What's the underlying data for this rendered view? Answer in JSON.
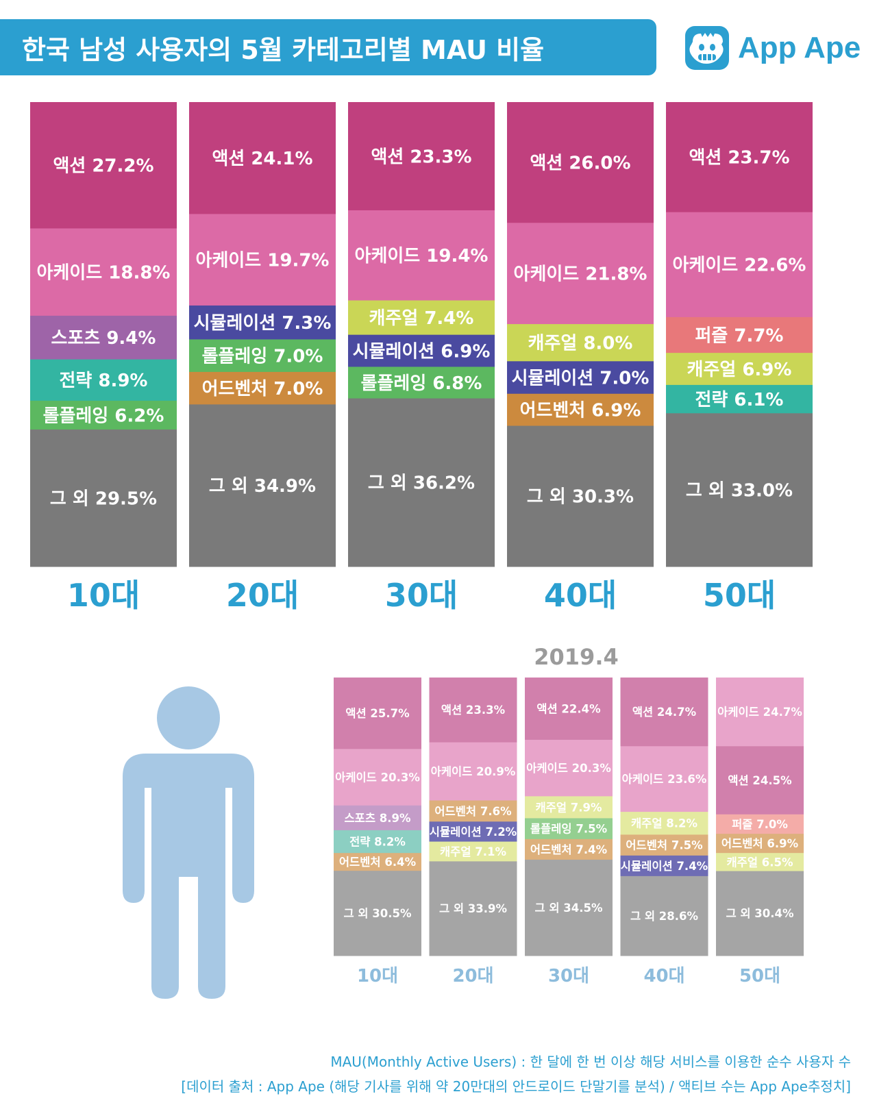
{
  "header": {
    "title": "한국 남성 사용자의 5월 카테고리별 MAU 비율",
    "logo_text": "App Ape",
    "brand_color": "#2b9fd0"
  },
  "colors": {
    "액션": "#c0407e",
    "아케이드": "#dc6aa6",
    "스포츠": "#9e64a8",
    "전략": "#33b5a2",
    "롤플레잉": "#5cb860",
    "시뮬레이션": "#4a4aa0",
    "어드벤처": "#cc8a3e",
    "캐주얼": "#cad656",
    "퍼즐": "#e8787a",
    "그 외": "#7a7a7a",
    "prev": {
      "액션": "#d180ac",
      "아케이드": "#e8a4ca",
      "스포츠": "#c49cc8",
      "전략": "#8ccfc2",
      "롤플레잉": "#94cf90",
      "시뮬레이션": "#6e6cb4",
      "어드벤처": "#ddb07c",
      "캐주얼": "#e4eaa0",
      "퍼즐": "#f4aca8",
      "그 외": "#a5a5a5"
    }
  },
  "chart_data": [
    {
      "type": "bar",
      "stacked": true,
      "period": "2019.5",
      "categories": [
        "10대",
        "20대",
        "30대",
        "40대",
        "50대"
      ],
      "stacks": [
        [
          {
            "label": "액션",
            "value": 27.2,
            "display": "액션 27.2%"
          },
          {
            "label": "아케이드",
            "value": 18.8,
            "display": "아케이드 18.8%"
          },
          {
            "label": "스포츠",
            "value": 9.4,
            "display": "스포츠 9.4%"
          },
          {
            "label": "전략",
            "value": 8.9,
            "display": "전략 8.9%"
          },
          {
            "label": "롤플레잉",
            "value": 6.2,
            "display": "롤플레잉 6.2%"
          },
          {
            "label": "그 외",
            "value": 29.5,
            "display": "그 외 29.5%"
          }
        ],
        [
          {
            "label": "액션",
            "value": 24.1,
            "display": "액션 24.1%"
          },
          {
            "label": "아케이드",
            "value": 19.7,
            "display": "아케이드 19.7%"
          },
          {
            "label": "시뮬레이션",
            "value": 7.3,
            "display": "시뮬레이션 7.3%"
          },
          {
            "label": "롤플레잉",
            "value": 7.0,
            "display": "롤플레잉 7.0%"
          },
          {
            "label": "어드벤처",
            "value": 7.0,
            "display": "어드벤처 7.0%"
          },
          {
            "label": "그 외",
            "value": 34.9,
            "display": "그 외 34.9%"
          }
        ],
        [
          {
            "label": "액션",
            "value": 23.3,
            "display": "액션 23.3%"
          },
          {
            "label": "아케이드",
            "value": 19.4,
            "display": "아케이드 19.4%"
          },
          {
            "label": "캐주얼",
            "value": 7.4,
            "display": "캐주얼 7.4%"
          },
          {
            "label": "시뮬레이션",
            "value": 6.9,
            "display": "시뮬레이션 6.9%"
          },
          {
            "label": "롤플레잉",
            "value": 6.8,
            "display": "롤플레잉 6.8%"
          },
          {
            "label": "그 외",
            "value": 36.2,
            "display": "그 외 36.2%"
          }
        ],
        [
          {
            "label": "액션",
            "value": 26.0,
            "display": "액션 26.0%"
          },
          {
            "label": "아케이드",
            "value": 21.8,
            "display": "아케이드 21.8%"
          },
          {
            "label": "캐주얼",
            "value": 8.0,
            "display": "캐주얼 8.0%"
          },
          {
            "label": "시뮬레이션",
            "value": 7.0,
            "display": "시뮬레이션 7.0%"
          },
          {
            "label": "어드벤처",
            "value": 6.9,
            "display": "어드벤처 6.9%"
          },
          {
            "label": "그 외",
            "value": 30.3,
            "display": "그 외 30.3%"
          }
        ],
        [
          {
            "label": "액션",
            "value": 23.7,
            "display": "액션 23.7%"
          },
          {
            "label": "아케이드",
            "value": 22.6,
            "display": "아케이드 22.6%"
          },
          {
            "label": "퍼즐",
            "value": 7.7,
            "display": "퍼즐 7.7%"
          },
          {
            "label": "캐주얼",
            "value": 6.9,
            "display": "캐주얼 6.9%"
          },
          {
            "label": "전략",
            "value": 6.1,
            "display": "전략 6.1%"
          },
          {
            "label": "그 외",
            "value": 33.0,
            "display": "그 외 33.0%"
          }
        ]
      ]
    },
    {
      "type": "bar",
      "stacked": true,
      "title": "2019.4",
      "categories": [
        "10대",
        "20대",
        "30대",
        "40대",
        "50대"
      ],
      "stacks": [
        [
          {
            "label": "액션",
            "value": 25.7,
            "display": "액션 25.7%"
          },
          {
            "label": "아케이드",
            "value": 20.3,
            "display": "아케이드 20.3%"
          },
          {
            "label": "스포츠",
            "value": 8.9,
            "display": "스포츠 8.9%"
          },
          {
            "label": "전략",
            "value": 8.2,
            "display": "전략 8.2%"
          },
          {
            "label": "어드벤처",
            "value": 6.4,
            "display": "어드벤처 6.4%"
          },
          {
            "label": "그 외",
            "value": 30.5,
            "display": "그 외 30.5%"
          }
        ],
        [
          {
            "label": "액션",
            "value": 23.3,
            "display": "액션 23.3%"
          },
          {
            "label": "아케이드",
            "value": 20.9,
            "display": "아케이드 20.9%"
          },
          {
            "label": "어드벤처",
            "value": 7.6,
            "display": "어드벤처 7.6%"
          },
          {
            "label": "시뮬레이션",
            "value": 7.2,
            "display": "시뮬레이션 7.2%"
          },
          {
            "label": "캐주얼",
            "value": 7.1,
            "display": "캐주얼 7.1%"
          },
          {
            "label": "그 외",
            "value": 33.9,
            "display": "그 외 33.9%"
          }
        ],
        [
          {
            "label": "액션",
            "value": 22.4,
            "display": "액션 22.4%"
          },
          {
            "label": "아케이드",
            "value": 20.3,
            "display": "아케이드 20.3%"
          },
          {
            "label": "캐주얼",
            "value": 7.9,
            "display": "캐주얼 7.9%"
          },
          {
            "label": "롤플레잉",
            "value": 7.5,
            "display": "롤플레잉 7.5%"
          },
          {
            "label": "어드벤처",
            "value": 7.4,
            "display": "어드벤처 7.4%"
          },
          {
            "label": "그 외",
            "value": 34.5,
            "display": "그 외 34.5%"
          }
        ],
        [
          {
            "label": "액션",
            "value": 24.7,
            "display": "액션 24.7%"
          },
          {
            "label": "아케이드",
            "value": 23.6,
            "display": "아케이드 23.6%"
          },
          {
            "label": "캐주얼",
            "value": 8.2,
            "display": "캐주얼 8.2%"
          },
          {
            "label": "어드벤처",
            "value": 7.5,
            "display": "어드벤처 7.5%"
          },
          {
            "label": "시뮬레이션",
            "value": 7.4,
            "display": "시뮬레이션 7.4%"
          },
          {
            "label": "그 외",
            "value": 28.6,
            "display": "그 외 28.6%"
          }
        ],
        [
          {
            "label": "아케이드",
            "value": 24.7,
            "display": "아케이드 24.7%"
          },
          {
            "label": "액션",
            "value": 24.5,
            "display": "액션 24.5%"
          },
          {
            "label": "퍼즐",
            "value": 7.0,
            "display": "퍼즐 7.0%"
          },
          {
            "label": "어드벤처",
            "value": 6.9,
            "display": "어드벤처 6.9%"
          },
          {
            "label": "캐주얼",
            "value": 6.5,
            "display": "캐주얼 6.5%"
          },
          {
            "label": "그 외",
            "value": 30.4,
            "display": "그 외 30.4%"
          }
        ]
      ]
    }
  ],
  "footnote": {
    "line1": "MAU(Monthly Active Users) : 한 달에 한 번 이상 해당 서비스를 이용한 순수 사용자 수",
    "line2": "[데이터 출처 : App Ape (해당 기사를 위해 약 20만대의 안드로이드 단말기를 분석) / 액티브 수는 App Ape추정치]"
  }
}
